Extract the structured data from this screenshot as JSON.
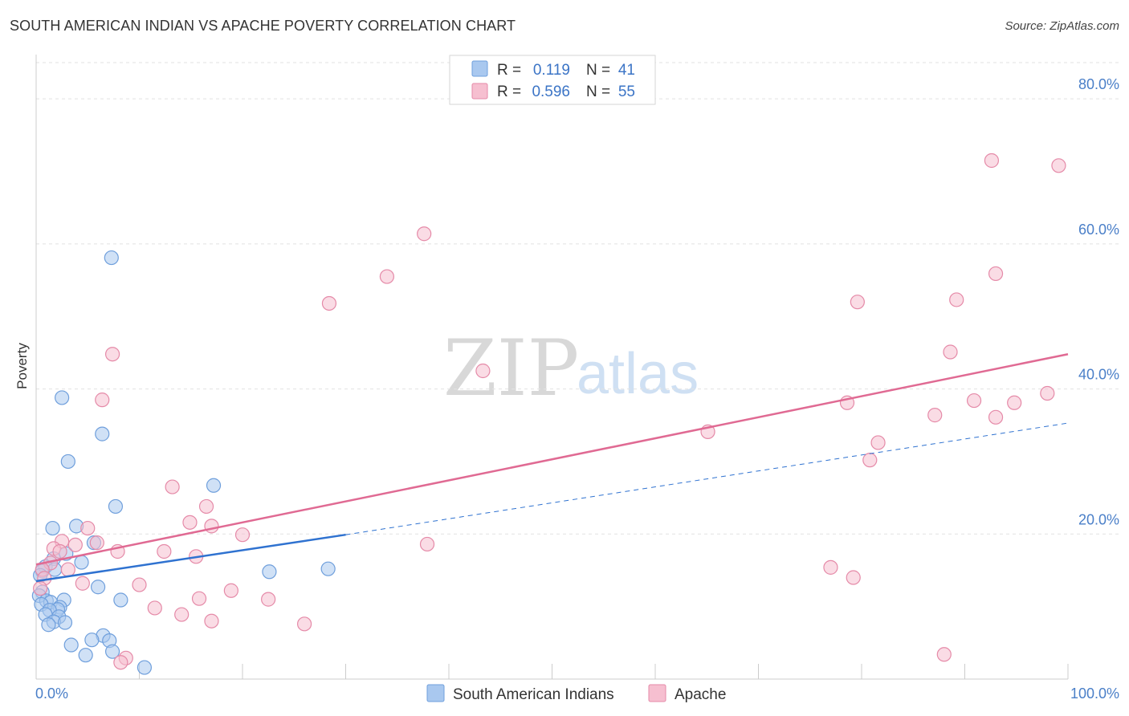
{
  "title": "SOUTH AMERICAN INDIAN VS APACHE POVERTY CORRELATION CHART",
  "source": "Source: ZipAtlas.com",
  "watermark": {
    "zip": "ZIP",
    "atlas": "atlas"
  },
  "colors": {
    "blue_fill": "#a9c8ef",
    "blue_stroke": "#6f9fdc",
    "blue_line": "#2f72d0",
    "pink_fill": "#f6bfd0",
    "pink_stroke": "#e58aa8",
    "pink_line": "#e06a93",
    "grid": "#e2e2e2",
    "axis_label": "#4a7fc8"
  },
  "legend": {
    "rows": [
      {
        "r_label": "R =",
        "r_value": "0.119",
        "n_label": "N =",
        "n_value": "41"
      },
      {
        "r_label": "R =",
        "r_value": "0.596",
        "n_label": "N =",
        "n_value": "55"
      }
    ]
  },
  "chart_data": {
    "type": "scatter",
    "title": "SOUTH AMERICAN INDIAN VS APACHE POVERTY CORRELATION CHART",
    "xlabel": "",
    "ylabel": "Poverty",
    "xlim": [
      0,
      100
    ],
    "ylim": [
      0,
      85
    ],
    "x_tick_labels": {
      "min": "0.0%",
      "max": "100.0%"
    },
    "y_ticks": [
      20,
      40,
      60,
      80
    ],
    "y_tick_labels": [
      "20.0%",
      "40.0%",
      "60.0%",
      "80.0%"
    ],
    "grid": true,
    "legend_position": "top-center",
    "series": [
      {
        "name": "South American Indians",
        "r": 0.119,
        "n": 41,
        "trend": {
          "x0": 0,
          "y0": 13.5,
          "x1": 30,
          "y1": 19.9,
          "dash_to_x": 100,
          "dash_to_y": 35.3
        },
        "points": [
          [
            7.3,
            58.1
          ],
          [
            2.5,
            38.8
          ],
          [
            6.4,
            33.8
          ],
          [
            3.1,
            30.0
          ],
          [
            17.2,
            26.7
          ],
          [
            7.7,
            23.8
          ],
          [
            1.6,
            20.8
          ],
          [
            3.9,
            21.1
          ],
          [
            5.6,
            18.8
          ],
          [
            2.9,
            17.3
          ],
          [
            1.7,
            16.6
          ],
          [
            4.4,
            16.1
          ],
          [
            0.9,
            15.5
          ],
          [
            1.8,
            15.1
          ],
          [
            0.6,
            14.9
          ],
          [
            0.4,
            14.3
          ],
          [
            22.6,
            14.8
          ],
          [
            28.3,
            15.2
          ],
          [
            6.0,
            12.7
          ],
          [
            0.6,
            12.0
          ],
          [
            0.3,
            11.5
          ],
          [
            1.0,
            10.8
          ],
          [
            1.4,
            10.6
          ],
          [
            2.7,
            10.9
          ],
          [
            8.2,
            10.9
          ],
          [
            0.5,
            10.3
          ],
          [
            2.3,
            9.9
          ],
          [
            2.1,
            9.6
          ],
          [
            1.3,
            9.5
          ],
          [
            0.9,
            8.9
          ],
          [
            2.2,
            8.6
          ],
          [
            1.7,
            7.9
          ],
          [
            2.8,
            7.8
          ],
          [
            1.2,
            7.5
          ],
          [
            6.5,
            6.0
          ],
          [
            7.1,
            5.3
          ],
          [
            5.4,
            5.4
          ],
          [
            3.4,
            4.7
          ],
          [
            7.4,
            3.8
          ],
          [
            4.8,
            3.3
          ],
          [
            10.5,
            1.6
          ]
        ]
      },
      {
        "name": "Apache",
        "r": 0.596,
        "n": 55,
        "trend": {
          "x0": 0,
          "y0": 15.8,
          "x1": 100,
          "y1": 44.8
        },
        "points": [
          [
            92.6,
            71.5
          ],
          [
            99.1,
            70.8
          ],
          [
            37.6,
            61.4
          ],
          [
            34.0,
            55.5
          ],
          [
            28.4,
            51.8
          ],
          [
            93.0,
            55.9
          ],
          [
            79.6,
            52.0
          ],
          [
            89.2,
            52.3
          ],
          [
            7.4,
            44.8
          ],
          [
            88.6,
            45.1
          ],
          [
            43.3,
            42.5
          ],
          [
            6.4,
            38.5
          ],
          [
            78.6,
            38.1
          ],
          [
            87.1,
            36.4
          ],
          [
            90.9,
            38.4
          ],
          [
            94.8,
            38.1
          ],
          [
            98.0,
            39.4
          ],
          [
            93.0,
            36.1
          ],
          [
            65.1,
            34.1
          ],
          [
            81.6,
            32.6
          ],
          [
            80.8,
            30.2
          ],
          [
            13.2,
            26.5
          ],
          [
            16.5,
            23.8
          ],
          [
            14.9,
            21.6
          ],
          [
            17.0,
            21.1
          ],
          [
            5.0,
            20.8
          ],
          [
            20.0,
            19.9
          ],
          [
            2.5,
            19.0
          ],
          [
            5.9,
            18.8
          ],
          [
            1.7,
            18.0
          ],
          [
            3.8,
            18.5
          ],
          [
            2.3,
            17.6
          ],
          [
            12.4,
            17.6
          ],
          [
            7.9,
            17.6
          ],
          [
            37.9,
            18.6
          ],
          [
            15.5,
            16.9
          ],
          [
            1.4,
            16.0
          ],
          [
            0.6,
            15.1
          ],
          [
            3.1,
            15.1
          ],
          [
            77.0,
            15.4
          ],
          [
            79.2,
            14.0
          ],
          [
            0.8,
            13.9
          ],
          [
            4.5,
            13.2
          ],
          [
            10.0,
            13.0
          ],
          [
            18.9,
            12.2
          ],
          [
            15.8,
            11.1
          ],
          [
            22.5,
            11.0
          ],
          [
            11.5,
            9.8
          ],
          [
            14.1,
            8.9
          ],
          [
            17.0,
            8.0
          ],
          [
            26.0,
            7.6
          ],
          [
            8.7,
            2.9
          ],
          [
            8.2,
            2.3
          ],
          [
            88.0,
            3.4
          ],
          [
            0.4,
            12.5
          ]
        ]
      }
    ]
  }
}
